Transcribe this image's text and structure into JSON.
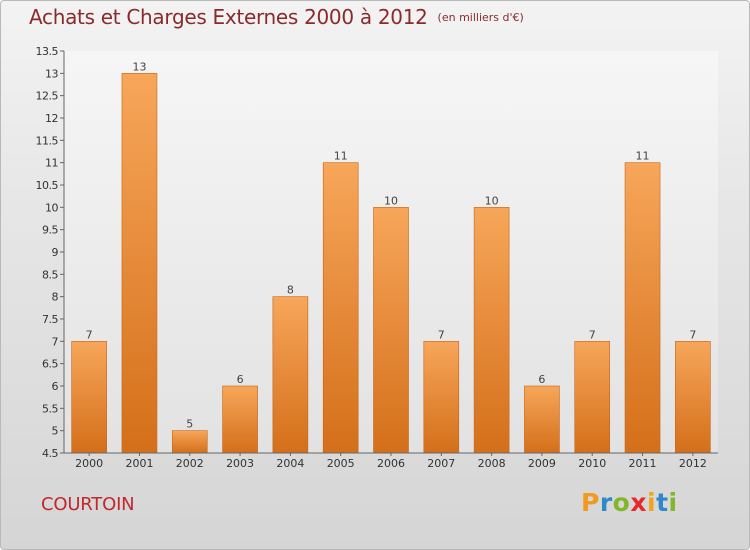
{
  "title": "Achats et Charges Externes 2000 à 2012",
  "subtitle": "(en milliers d'€)",
  "commune": "COURTOIN",
  "logo": {
    "letters": [
      "P",
      "r",
      "o",
      "x",
      "i",
      "t",
      "i"
    ],
    "colors": [
      "#f29a1f",
      "#2f88c9",
      "#84b62c",
      "#e8282b",
      "#f0a420",
      "#2f88c9",
      "#84b62c"
    ]
  },
  "colors": {
    "bar_top": "#f7a65a",
    "bar_bottom": "#d46f1a",
    "title": "#8a2b2b",
    "commune": "#c2272d"
  },
  "chart_data": {
    "type": "bar",
    "categories": [
      "2000",
      "2001",
      "2002",
      "2003",
      "2004",
      "2005",
      "2006",
      "2007",
      "2008",
      "2009",
      "2010",
      "2011",
      "2012"
    ],
    "values": [
      7,
      13,
      5,
      6,
      8,
      11,
      10,
      7,
      10,
      6,
      7,
      11,
      7
    ],
    "ylim": [
      4.5,
      13.5
    ],
    "yticks": [
      "4.5",
      "5",
      "5.5",
      "6",
      "6.5",
      "7",
      "7.5",
      "8",
      "8.5",
      "9",
      "9.5",
      "10",
      "10.5",
      "11",
      "11.5",
      "12",
      "12.5",
      "13",
      "13.5"
    ],
    "grid": false,
    "legend": "none"
  }
}
